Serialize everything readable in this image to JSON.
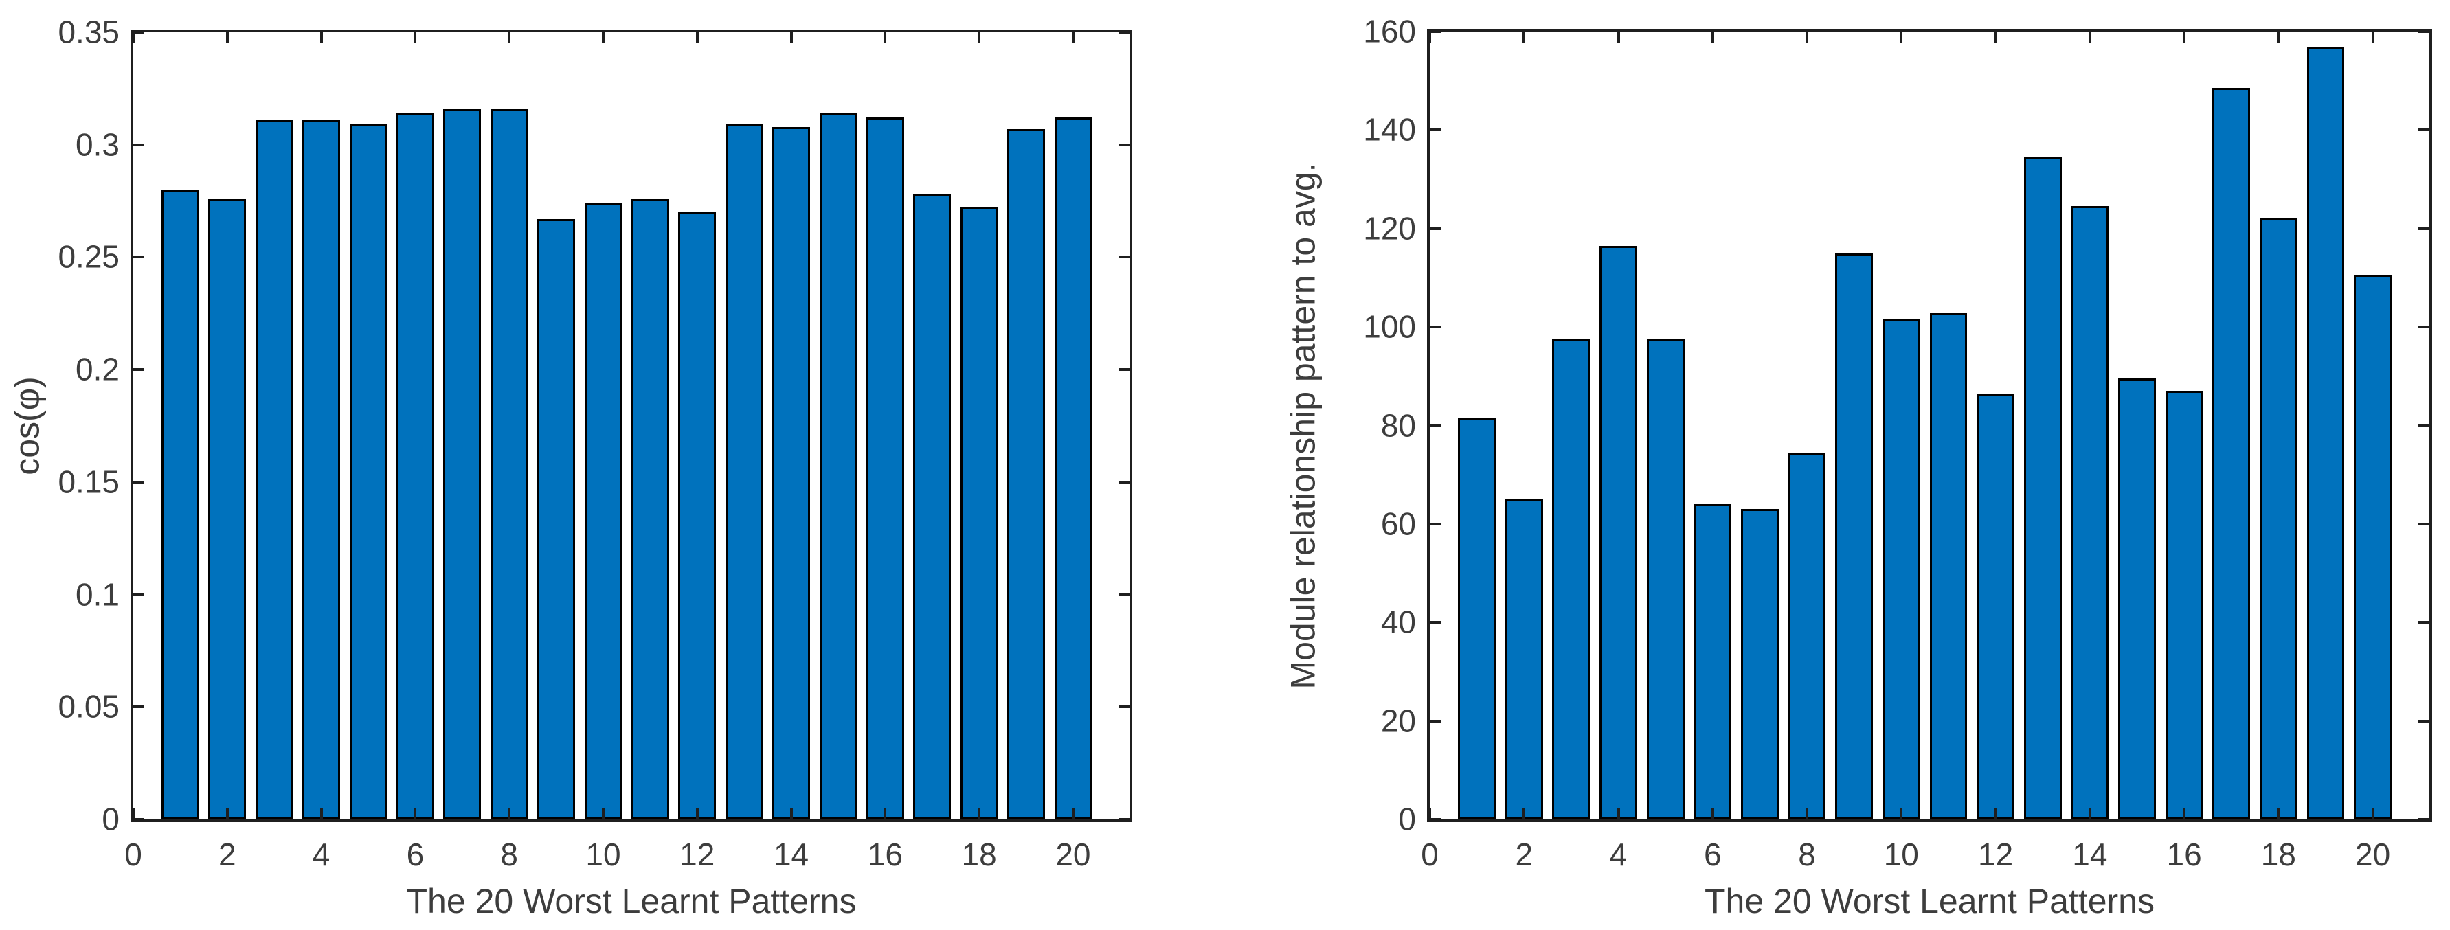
{
  "figure": {
    "background_color": "#ffffff",
    "bar_face_color": "#0072BD",
    "bar_edge_color": "#000000",
    "axis_color": "#1f1f1f",
    "tick_label_color": "#3d3d3d"
  },
  "chart_data": [
    {
      "type": "bar",
      "title": "",
      "xlabel": "The 20 Worst Learnt Patterns",
      "ylabel": "cos(φ)",
      "categories": [
        1,
        2,
        3,
        4,
        5,
        6,
        7,
        8,
        9,
        10,
        11,
        12,
        13,
        14,
        15,
        16,
        17,
        18,
        19,
        20
      ],
      "values": [
        0.28,
        0.276,
        0.311,
        0.311,
        0.309,
        0.314,
        0.316,
        0.316,
        0.267,
        0.274,
        0.276,
        0.27,
        0.309,
        0.308,
        0.314,
        0.312,
        0.278,
        0.272,
        0.307,
        0.312
      ],
      "xlim": [
        0,
        21.2
      ],
      "ylim": [
        0,
        0.35
      ],
      "xticks": [
        0,
        2,
        4,
        6,
        8,
        10,
        12,
        14,
        16,
        18,
        20
      ],
      "xtick_labels": [
        "0",
        "2",
        "4",
        "6",
        "8",
        "10",
        "12",
        "14",
        "16",
        "18",
        "20"
      ],
      "yticks": [
        0,
        0.05,
        0.1,
        0.15,
        0.2,
        0.25,
        0.3,
        0.35
      ],
      "ytick_labels": [
        "0",
        "0.05",
        "0.1",
        "0.15",
        "0.2",
        "0.25",
        "0.3",
        "0.35"
      ],
      "grid": false,
      "legend": null,
      "bar_color": "#0072BD",
      "bar_edge_color": "#000000",
      "bar_rel_width": 0.8
    },
    {
      "type": "bar",
      "title": "",
      "xlabel": "The 20 Worst Learnt Patterns",
      "ylabel": "Module relationship pattern to avg.",
      "categories": [
        1,
        2,
        3,
        4,
        5,
        6,
        7,
        8,
        9,
        10,
        11,
        12,
        13,
        14,
        15,
        16,
        17,
        18,
        19,
        20
      ],
      "values": [
        81.5,
        65,
        97.5,
        116.5,
        97.5,
        64,
        63,
        74.5,
        115,
        101.5,
        103,
        86.5,
        134.5,
        124.5,
        89.5,
        87,
        148.5,
        122,
        157,
        110.5
      ],
      "xlim": [
        0,
        21.2
      ],
      "ylim": [
        0,
        160
      ],
      "xticks": [
        0,
        2,
        4,
        6,
        8,
        10,
        12,
        14,
        16,
        18,
        20
      ],
      "xtick_labels": [
        "0",
        "2",
        "4",
        "6",
        "8",
        "10",
        "12",
        "14",
        "16",
        "18",
        "20"
      ],
      "yticks": [
        0,
        20,
        40,
        60,
        80,
        100,
        120,
        140,
        160
      ],
      "ytick_labels": [
        "0",
        "20",
        "40",
        "60",
        "80",
        "100",
        "120",
        "140",
        "160"
      ],
      "grid": false,
      "legend": null,
      "bar_color": "#0072BD",
      "bar_edge_color": "#000000",
      "bar_rel_width": 0.8
    }
  ]
}
